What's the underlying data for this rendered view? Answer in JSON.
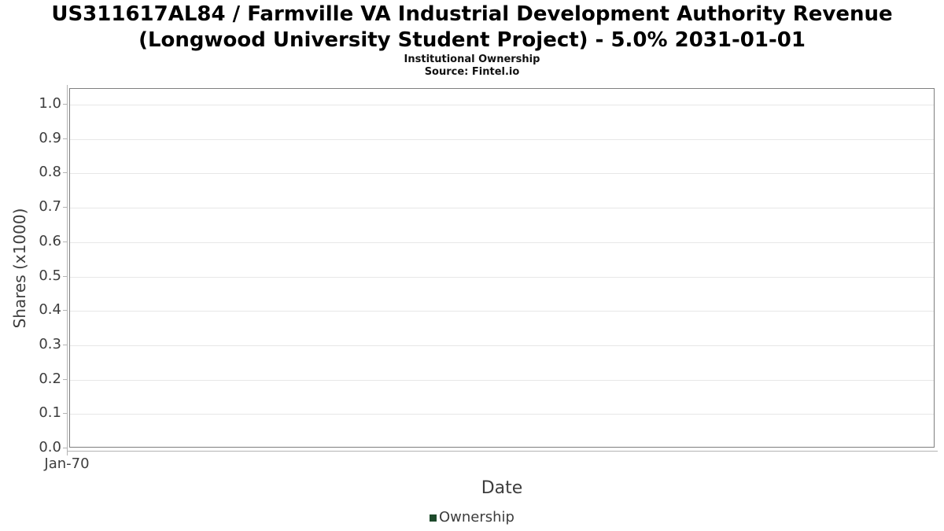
{
  "chart_data": {
    "type": "line",
    "title": "US311617AL84 / Farmville VA Industrial Development Authority Revenue (Longwood University Student Project) - 5.0% 2031-01-01",
    "title_lines": [
      "US311617AL84 / Farmville VA Industrial Development Authority Revenue",
      "(Longwood University Student Project) - 5.0% 2031-01-01"
    ],
    "subtitle": "Institutional Ownership",
    "source": "Source: Fintel.io",
    "xlabel": "Date",
    "ylabel": "Shares (x1000)",
    "x_ticks": [
      {
        "label": "Jan-70",
        "x_frac": 0.0
      }
    ],
    "y_ticks": [
      "0.0",
      "0.1",
      "0.2",
      "0.3",
      "0.4",
      "0.5",
      "0.6",
      "0.7",
      "0.8",
      "0.9",
      "1.0"
    ],
    "ylim": [
      0.0,
      1.05
    ],
    "grid": true,
    "legend_position": "bottom",
    "series": [
      {
        "name": "Ownership",
        "color": "#1d4a2b",
        "values": []
      }
    ],
    "colors": {
      "title_text": "#000000",
      "axis_text": "#3d3d3d",
      "plot_border": "#7f7f7f",
      "axis_line": "#b3b3b3",
      "gridline": "#e7e7e7",
      "legend_marker": "#1d4a2b",
      "background": "#ffffff"
    }
  }
}
